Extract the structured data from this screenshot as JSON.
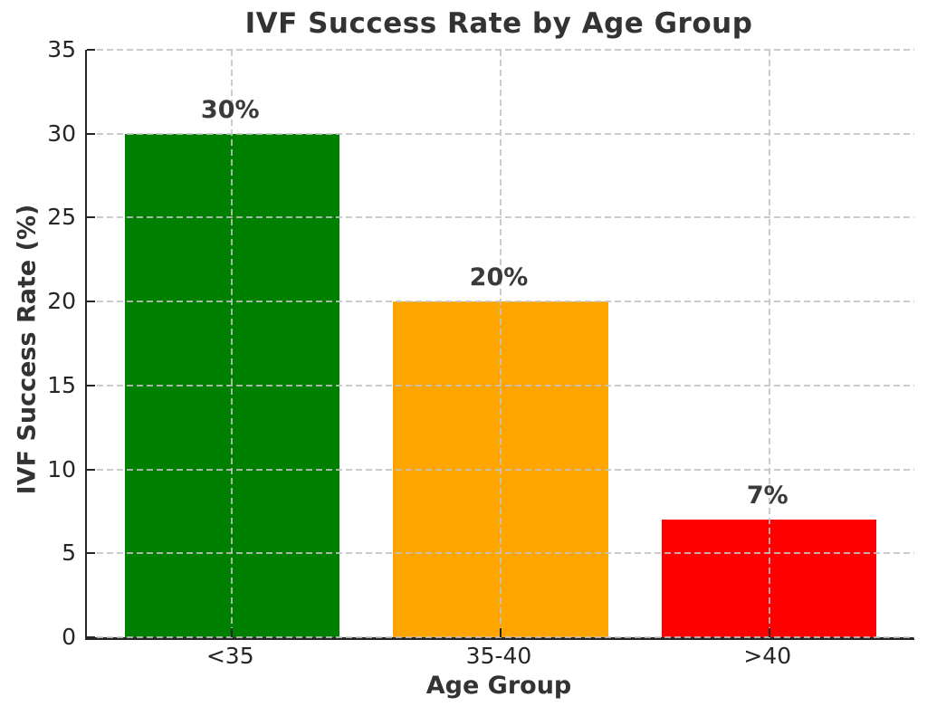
{
  "chart_data": {
    "type": "bar",
    "title": "IVF Success Rate by Age Group",
    "xlabel": "Age Group",
    "ylabel": "IVF Success Rate (%)",
    "categories": [
      "<35",
      "35-40",
      ">40"
    ],
    "values": [
      30,
      20,
      7
    ],
    "value_labels": [
      "30%",
      "20%",
      "7%"
    ],
    "bar_colors": [
      "#008000",
      "#FFA500",
      "#FF0000"
    ],
    "ylim": [
      0,
      35
    ],
    "yticks": [
      0,
      5,
      10,
      15,
      20,
      25,
      30,
      35
    ],
    "ytick_labels": [
      "0",
      "5",
      "10",
      "15",
      "20",
      "25",
      "30",
      "35"
    ],
    "bar_width_fraction": 0.8,
    "grid": {
      "axis": "both",
      "linestyle": "dashed",
      "color": "#c3c3c3",
      "drawn_above_bars": true
    },
    "spines": {
      "left": true,
      "bottom": true,
      "top": false,
      "right": false,
      "color": "#262626"
    },
    "text_colors": {
      "title": "#333333",
      "axis_labels": "#333333",
      "tick_labels": "#262626",
      "bar_value_labels": "#3a3a3a"
    },
    "background_color": "#ffffff",
    "legend": "none"
  }
}
